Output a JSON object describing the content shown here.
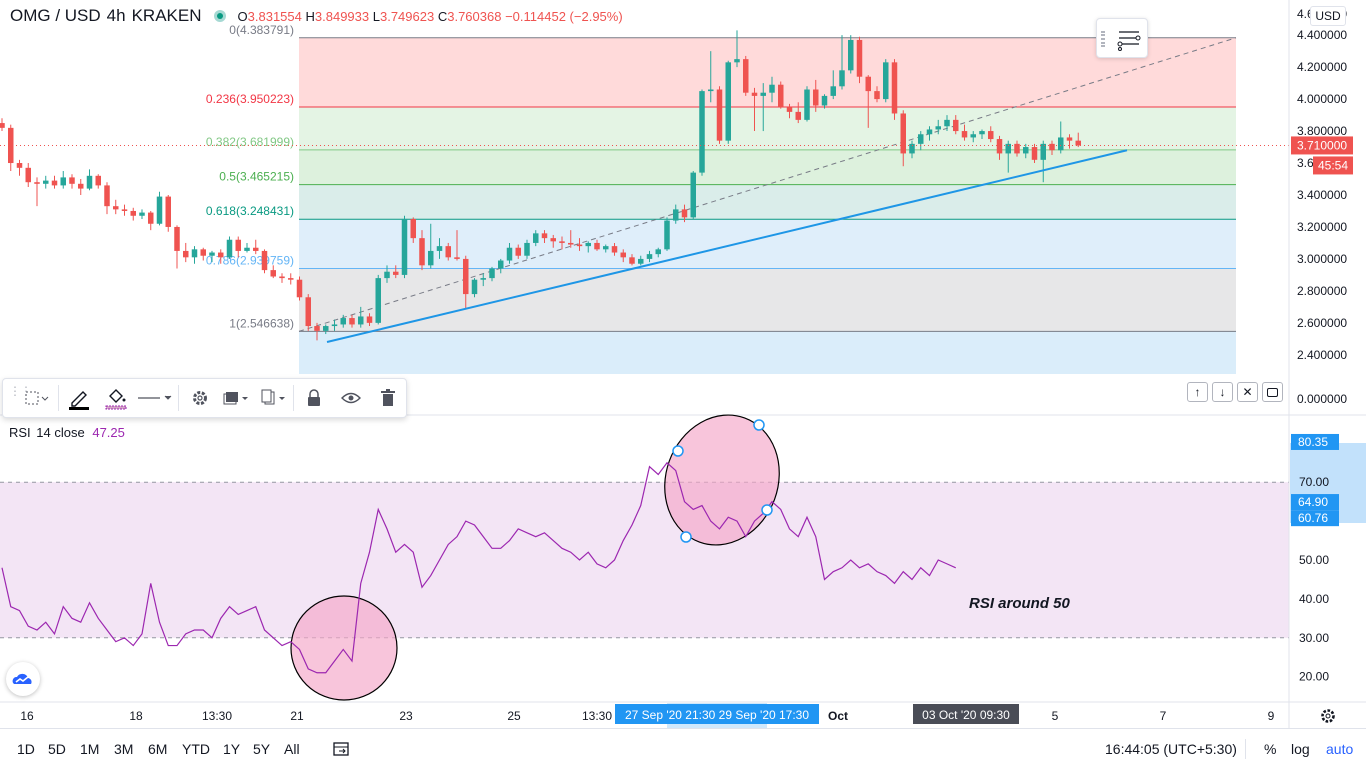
{
  "header": {
    "symbol": "OMG / USD",
    "interval": "4h",
    "exchange": "KRAKEN",
    "o_label": "O",
    "o_value": "3.831554",
    "h_label": "H",
    "h_value": "3.849933",
    "l_label": "L",
    "l_value": "3.749623",
    "c_label": "C",
    "c_value": "3.760368",
    "change": "−0.114452 (−2.95%)",
    "currency": "USD"
  },
  "colors": {
    "up": "#26a69a",
    "down": "#ef5350",
    "rsi_line": "#9c27b0",
    "trendline": "#1e96e6",
    "price_label": "#ef5350",
    "accent_blue": "#2196f3"
  },
  "fib_levels": [
    {
      "label": "0(4.383791)",
      "price": 4.383791,
      "line_color": "#787b86",
      "fill": "#ffd6d6",
      "text_color": "#787b86"
    },
    {
      "label": "0.236(3.950223)",
      "price": 3.950223,
      "line_color": "#f23645",
      "fill": "#e1f3e1",
      "text_color": "#f23645"
    },
    {
      "label": "0.382(3.681999)",
      "price": 3.681999,
      "line_color": "#81c784",
      "fill": "#d9efd9",
      "text_color": "#81c784"
    },
    {
      "label": "0.5(3.465215)",
      "price": 3.465215,
      "line_color": "#4caf50",
      "fill": "#d6ebe8",
      "text_color": "#4caf50"
    },
    {
      "label": "0.618(3.248431)",
      "price": 3.248431,
      "line_color": "#089981",
      "fill": "#dcecf9",
      "text_color": "#089981"
    },
    {
      "label": "0.786(2.939759)",
      "price": 2.939759,
      "line_color": "#64b5f6",
      "fill": "#e4e4e6",
      "text_color": "#64b5f6"
    },
    {
      "label": "1(2.546638)",
      "price": 2.546638,
      "line_color": "#787b86",
      "fill": "#d6ebfa",
      "text_color": "#787b86"
    }
  ],
  "price_axis": {
    "ticks": [
      "4.400000",
      "4.200000",
      "4.000000",
      "3.800000",
      "3.600000",
      "3.400000",
      "3.200000",
      "3.000000",
      "2.800000",
      "2.600000",
      "2.400000"
    ],
    "extra_tick": "0.000000",
    "top_tick": "4.600000",
    "last_price": "3.710000",
    "countdown": "45:54"
  },
  "rsi": {
    "title": "RSI",
    "params": "14 close",
    "value": "47.25",
    "ticks": [
      "70.00",
      "60.00",
      "50.00",
      "40.00",
      "30.00",
      "20.00"
    ],
    "range_high": "80.35",
    "range_mid": "64.90",
    "range_low": "60.76",
    "annotation": "RSI around 50"
  },
  "time_axis": {
    "ticks": [
      "16",
      "18",
      "13:30",
      "21",
      "23",
      "25",
      "13:30",
      "Oct",
      "5",
      "7",
      "9"
    ],
    "highlight_range": "27 Sep '20  21:30  29 Sep '20  17:30",
    "crosshair_label": "03 Oct '20  09:30"
  },
  "bottom_bar": {
    "ranges": [
      "1D",
      "5D",
      "1M",
      "3M",
      "6M",
      "YTD",
      "1Y",
      "5Y",
      "All"
    ],
    "clock": "16:44:05 (UTC+5:30)",
    "percent": "%",
    "log": "log",
    "auto": "auto"
  },
  "chart_data": {
    "type": "candlestick",
    "title": "OMG / USD 4h KRAKEN",
    "ylim": [
      2.28,
      4.62
    ],
    "candles": [
      {
        "o": 3.85,
        "h": 3.88,
        "l": 3.8,
        "c": 3.82
      },
      {
        "o": 3.82,
        "h": 3.84,
        "l": 3.55,
        "c": 3.6
      },
      {
        "o": 3.6,
        "h": 3.62,
        "l": 3.52,
        "c": 3.57
      },
      {
        "o": 3.57,
        "h": 3.6,
        "l": 3.45,
        "c": 3.48
      },
      {
        "o": 3.48,
        "h": 3.51,
        "l": 3.33,
        "c": 3.47
      },
      {
        "o": 3.47,
        "h": 3.52,
        "l": 3.44,
        "c": 3.49
      },
      {
        "o": 3.49,
        "h": 3.52,
        "l": 3.44,
        "c": 3.46
      },
      {
        "o": 3.46,
        "h": 3.55,
        "l": 3.44,
        "c": 3.51
      },
      {
        "o": 3.51,
        "h": 3.53,
        "l": 3.44,
        "c": 3.47
      },
      {
        "o": 3.47,
        "h": 3.5,
        "l": 3.4,
        "c": 3.44
      },
      {
        "o": 3.44,
        "h": 3.56,
        "l": 3.43,
        "c": 3.52
      },
      {
        "o": 3.52,
        "h": 3.53,
        "l": 3.44,
        "c": 3.46
      },
      {
        "o": 3.46,
        "h": 3.48,
        "l": 3.28,
        "c": 3.33
      },
      {
        "o": 3.33,
        "h": 3.37,
        "l": 3.28,
        "c": 3.31
      },
      {
        "o": 3.31,
        "h": 3.34,
        "l": 3.27,
        "c": 3.3
      },
      {
        "o": 3.3,
        "h": 3.32,
        "l": 3.24,
        "c": 3.27
      },
      {
        "o": 3.27,
        "h": 3.31,
        "l": 3.25,
        "c": 3.29
      },
      {
        "o": 3.29,
        "h": 3.3,
        "l": 3.18,
        "c": 3.22
      },
      {
        "o": 3.22,
        "h": 3.42,
        "l": 3.21,
        "c": 3.39
      },
      {
        "o": 3.39,
        "h": 3.4,
        "l": 3.17,
        "c": 3.2
      },
      {
        "o": 3.2,
        "h": 3.21,
        "l": 2.94,
        "c": 3.05
      },
      {
        "o": 3.05,
        "h": 3.1,
        "l": 2.98,
        "c": 3.01
      },
      {
        "o": 3.01,
        "h": 3.08,
        "l": 2.97,
        "c": 3.06
      },
      {
        "o": 3.06,
        "h": 3.07,
        "l": 2.99,
        "c": 3.02
      },
      {
        "o": 3.02,
        "h": 3.05,
        "l": 2.98,
        "c": 3.04
      },
      {
        "o": 3.04,
        "h": 3.06,
        "l": 2.97,
        "c": 3.01
      },
      {
        "o": 3.01,
        "h": 3.14,
        "l": 3.0,
        "c": 3.12
      },
      {
        "o": 3.12,
        "h": 3.14,
        "l": 3.01,
        "c": 3.05
      },
      {
        "o": 3.05,
        "h": 3.1,
        "l": 3.04,
        "c": 3.07
      },
      {
        "o": 3.07,
        "h": 3.12,
        "l": 3.03,
        "c": 3.05
      },
      {
        "o": 3.05,
        "h": 3.06,
        "l": 2.91,
        "c": 2.93
      },
      {
        "o": 2.93,
        "h": 2.96,
        "l": 2.88,
        "c": 2.89
      },
      {
        "o": 2.89,
        "h": 2.91,
        "l": 2.85,
        "c": 2.88
      },
      {
        "o": 2.88,
        "h": 2.91,
        "l": 2.84,
        "c": 2.87
      },
      {
        "o": 2.87,
        "h": 2.89,
        "l": 2.74,
        "c": 2.76
      },
      {
        "o": 2.76,
        "h": 2.78,
        "l": 2.55,
        "c": 2.58
      },
      {
        "o": 2.58,
        "h": 2.6,
        "l": 2.49,
        "c": 2.55
      },
      {
        "o": 2.55,
        "h": 2.59,
        "l": 2.53,
        "c": 2.58
      },
      {
        "o": 2.58,
        "h": 2.62,
        "l": 2.55,
        "c": 2.59
      },
      {
        "o": 2.59,
        "h": 2.65,
        "l": 2.57,
        "c": 2.63
      },
      {
        "o": 2.63,
        "h": 2.65,
        "l": 2.57,
        "c": 2.59
      },
      {
        "o": 2.59,
        "h": 2.7,
        "l": 2.57,
        "c": 2.64
      },
      {
        "o": 2.64,
        "h": 2.66,
        "l": 2.58,
        "c": 2.6
      },
      {
        "o": 2.6,
        "h": 2.9,
        "l": 2.59,
        "c": 2.88
      },
      {
        "o": 2.88,
        "h": 2.96,
        "l": 2.85,
        "c": 2.92
      },
      {
        "o": 2.92,
        "h": 2.96,
        "l": 2.88,
        "c": 2.9
      },
      {
        "o": 2.9,
        "h": 3.27,
        "l": 2.88,
        "c": 3.25
      },
      {
        "o": 3.25,
        "h": 3.26,
        "l": 3.1,
        "c": 3.13
      },
      {
        "o": 3.13,
        "h": 3.18,
        "l": 2.93,
        "c": 2.96
      },
      {
        "o": 2.96,
        "h": 3.22,
        "l": 2.94,
        "c": 3.05
      },
      {
        "o": 3.05,
        "h": 3.13,
        "l": 3.0,
        "c": 3.08
      },
      {
        "o": 3.08,
        "h": 3.1,
        "l": 2.99,
        "c": 3.01
      },
      {
        "o": 3.01,
        "h": 3.18,
        "l": 2.99,
        "c": 3.0
      },
      {
        "o": 3.0,
        "h": 3.02,
        "l": 2.69,
        "c": 2.78
      },
      {
        "o": 2.78,
        "h": 2.88,
        "l": 2.76,
        "c": 2.87
      },
      {
        "o": 2.87,
        "h": 2.91,
        "l": 2.83,
        "c": 2.88
      },
      {
        "o": 2.88,
        "h": 2.95,
        "l": 2.86,
        "c": 2.94
      },
      {
        "o": 2.94,
        "h": 3.0,
        "l": 2.91,
        "c": 2.99
      },
      {
        "o": 2.99,
        "h": 3.1,
        "l": 2.97,
        "c": 3.07
      },
      {
        "o": 3.07,
        "h": 3.09,
        "l": 3.0,
        "c": 3.02
      },
      {
        "o": 3.02,
        "h": 3.12,
        "l": 3.0,
        "c": 3.1
      },
      {
        "o": 3.1,
        "h": 3.18,
        "l": 3.08,
        "c": 3.16
      },
      {
        "o": 3.16,
        "h": 3.18,
        "l": 3.1,
        "c": 3.13
      },
      {
        "o": 3.13,
        "h": 3.15,
        "l": 3.07,
        "c": 3.11
      },
      {
        "o": 3.11,
        "h": 3.14,
        "l": 3.06,
        "c": 3.1
      },
      {
        "o": 3.1,
        "h": 3.18,
        "l": 3.07,
        "c": 3.09
      },
      {
        "o": 3.09,
        "h": 3.13,
        "l": 3.05,
        "c": 3.08
      },
      {
        "o": 3.08,
        "h": 3.11,
        "l": 3.04,
        "c": 3.1
      },
      {
        "o": 3.1,
        "h": 3.12,
        "l": 3.05,
        "c": 3.06
      },
      {
        "o": 3.06,
        "h": 3.09,
        "l": 3.04,
        "c": 3.08
      },
      {
        "o": 3.08,
        "h": 3.1,
        "l": 3.02,
        "c": 3.04
      },
      {
        "o": 3.04,
        "h": 3.06,
        "l": 2.98,
        "c": 3.01
      },
      {
        "o": 3.01,
        "h": 3.03,
        "l": 2.96,
        "c": 2.97
      },
      {
        "o": 2.97,
        "h": 3.02,
        "l": 2.96,
        "c": 3.0
      },
      {
        "o": 3.0,
        "h": 3.05,
        "l": 2.98,
        "c": 3.03
      },
      {
        "o": 3.03,
        "h": 3.07,
        "l": 3.01,
        "c": 3.06
      },
      {
        "o": 3.06,
        "h": 3.26,
        "l": 3.05,
        "c": 3.24
      },
      {
        "o": 3.24,
        "h": 3.34,
        "l": 3.22,
        "c": 3.31
      },
      {
        "o": 3.31,
        "h": 3.34,
        "l": 3.23,
        "c": 3.26
      },
      {
        "o": 3.26,
        "h": 3.55,
        "l": 3.25,
        "c": 3.54
      },
      {
        "o": 3.54,
        "h": 4.06,
        "l": 3.52,
        "c": 4.05
      },
      {
        "o": 4.05,
        "h": 4.3,
        "l": 3.98,
        "c": 4.06
      },
      {
        "o": 4.06,
        "h": 4.08,
        "l": 3.72,
        "c": 3.74
      },
      {
        "o": 3.74,
        "h": 4.24,
        "l": 3.72,
        "c": 4.23
      },
      {
        "o": 4.23,
        "h": 4.43,
        "l": 4.2,
        "c": 4.25
      },
      {
        "o": 4.25,
        "h": 4.27,
        "l": 4.02,
        "c": 4.04
      },
      {
        "o": 4.04,
        "h": 4.07,
        "l": 3.8,
        "c": 4.02
      },
      {
        "o": 4.02,
        "h": 4.1,
        "l": 3.8,
        "c": 4.04
      },
      {
        "o": 4.04,
        "h": 4.14,
        "l": 3.98,
        "c": 4.09
      },
      {
        "o": 4.09,
        "h": 4.11,
        "l": 3.94,
        "c": 3.95
      },
      {
        "o": 3.95,
        "h": 3.97,
        "l": 3.88,
        "c": 3.92
      },
      {
        "o": 3.92,
        "h": 3.98,
        "l": 3.85,
        "c": 3.87
      },
      {
        "o": 3.87,
        "h": 4.08,
        "l": 3.86,
        "c": 4.06
      },
      {
        "o": 4.06,
        "h": 4.12,
        "l": 3.92,
        "c": 3.96
      },
      {
        "o": 3.96,
        "h": 4.03,
        "l": 3.94,
        "c": 4.02
      },
      {
        "o": 4.02,
        "h": 4.18,
        "l": 4.0,
        "c": 4.08
      },
      {
        "o": 4.08,
        "h": 4.4,
        "l": 4.06,
        "c": 4.18
      },
      {
        "o": 4.18,
        "h": 4.4,
        "l": 4.16,
        "c": 4.37
      },
      {
        "o": 4.37,
        "h": 4.39,
        "l": 4.1,
        "c": 4.14
      },
      {
        "o": 4.14,
        "h": 4.15,
        "l": 3.82,
        "c": 4.05
      },
      {
        "o": 4.05,
        "h": 4.08,
        "l": 3.98,
        "c": 4.0
      },
      {
        "o": 4.0,
        "h": 4.25,
        "l": 3.98,
        "c": 4.23
      },
      {
        "o": 4.23,
        "h": 4.25,
        "l": 3.87,
        "c": 3.91
      },
      {
        "o": 3.91,
        "h": 3.93,
        "l": 3.58,
        "c": 3.66
      },
      {
        "o": 3.66,
        "h": 3.74,
        "l": 3.63,
        "c": 3.72
      },
      {
        "o": 3.72,
        "h": 3.8,
        "l": 3.68,
        "c": 3.78
      },
      {
        "o": 3.78,
        "h": 3.83,
        "l": 3.74,
        "c": 3.81
      },
      {
        "o": 3.81,
        "h": 3.87,
        "l": 3.78,
        "c": 3.83
      },
      {
        "o": 3.83,
        "h": 3.9,
        "l": 3.8,
        "c": 3.87
      },
      {
        "o": 3.87,
        "h": 3.9,
        "l": 3.78,
        "c": 3.8
      },
      {
        "o": 3.8,
        "h": 3.84,
        "l": 3.74,
        "c": 3.76
      },
      {
        "o": 3.76,
        "h": 3.8,
        "l": 3.73,
        "c": 3.78
      },
      {
        "o": 3.78,
        "h": 3.81,
        "l": 3.75,
        "c": 3.8
      },
      {
        "o": 3.8,
        "h": 3.83,
        "l": 3.73,
        "c": 3.75
      },
      {
        "o": 3.75,
        "h": 3.77,
        "l": 3.62,
        "c": 3.66
      },
      {
        "o": 3.66,
        "h": 3.74,
        "l": 3.54,
        "c": 3.72
      },
      {
        "o": 3.72,
        "h": 3.74,
        "l": 3.64,
        "c": 3.66
      },
      {
        "o": 3.66,
        "h": 3.72,
        "l": 3.63,
        "c": 3.7
      },
      {
        "o": 3.7,
        "h": 3.72,
        "l": 3.6,
        "c": 3.62
      },
      {
        "o": 3.62,
        "h": 3.74,
        "l": 3.48,
        "c": 3.72
      },
      {
        "o": 3.72,
        "h": 3.74,
        "l": 3.65,
        "c": 3.68
      },
      {
        "o": 3.68,
        "h": 3.86,
        "l": 3.66,
        "c": 3.76
      },
      {
        "o": 3.76,
        "h": 3.78,
        "l": 3.69,
        "c": 3.74
      },
      {
        "o": 3.74,
        "h": 3.79,
        "l": 3.7,
        "c": 3.71
      }
    ],
    "rsi_values": [
      48,
      38,
      37,
      33,
      32,
      34,
      31,
      38,
      35,
      34,
      39,
      35,
      32,
      29,
      30,
      28,
      31,
      44,
      34,
      28,
      28,
      31,
      32,
      32,
      30,
      35,
      38,
      36,
      37,
      38,
      32,
      30,
      28,
      29,
      27,
      22,
      21,
      21,
      24,
      27,
      24,
      44,
      52,
      63,
      58,
      52,
      54,
      52,
      43,
      46,
      50,
      54,
      56,
      60,
      59,
      56,
      53,
      53,
      55,
      58,
      57,
      56,
      57,
      55,
      53,
      52,
      50,
      52,
      49,
      48,
      50,
      55,
      59,
      64,
      74,
      72,
      75,
      73,
      65,
      63,
      64,
      60,
      58,
      61,
      60,
      56,
      60,
      62,
      65,
      63,
      58,
      56,
      61,
      56,
      45,
      47,
      48,
      50,
      48,
      49,
      47,
      46,
      44,
      47,
      45,
      48,
      46,
      50,
      49,
      48
    ],
    "rsi_levels": {
      "upper": 70,
      "middle": 50,
      "lower": 30
    },
    "rsi_ylim": [
      14,
      86
    ]
  }
}
